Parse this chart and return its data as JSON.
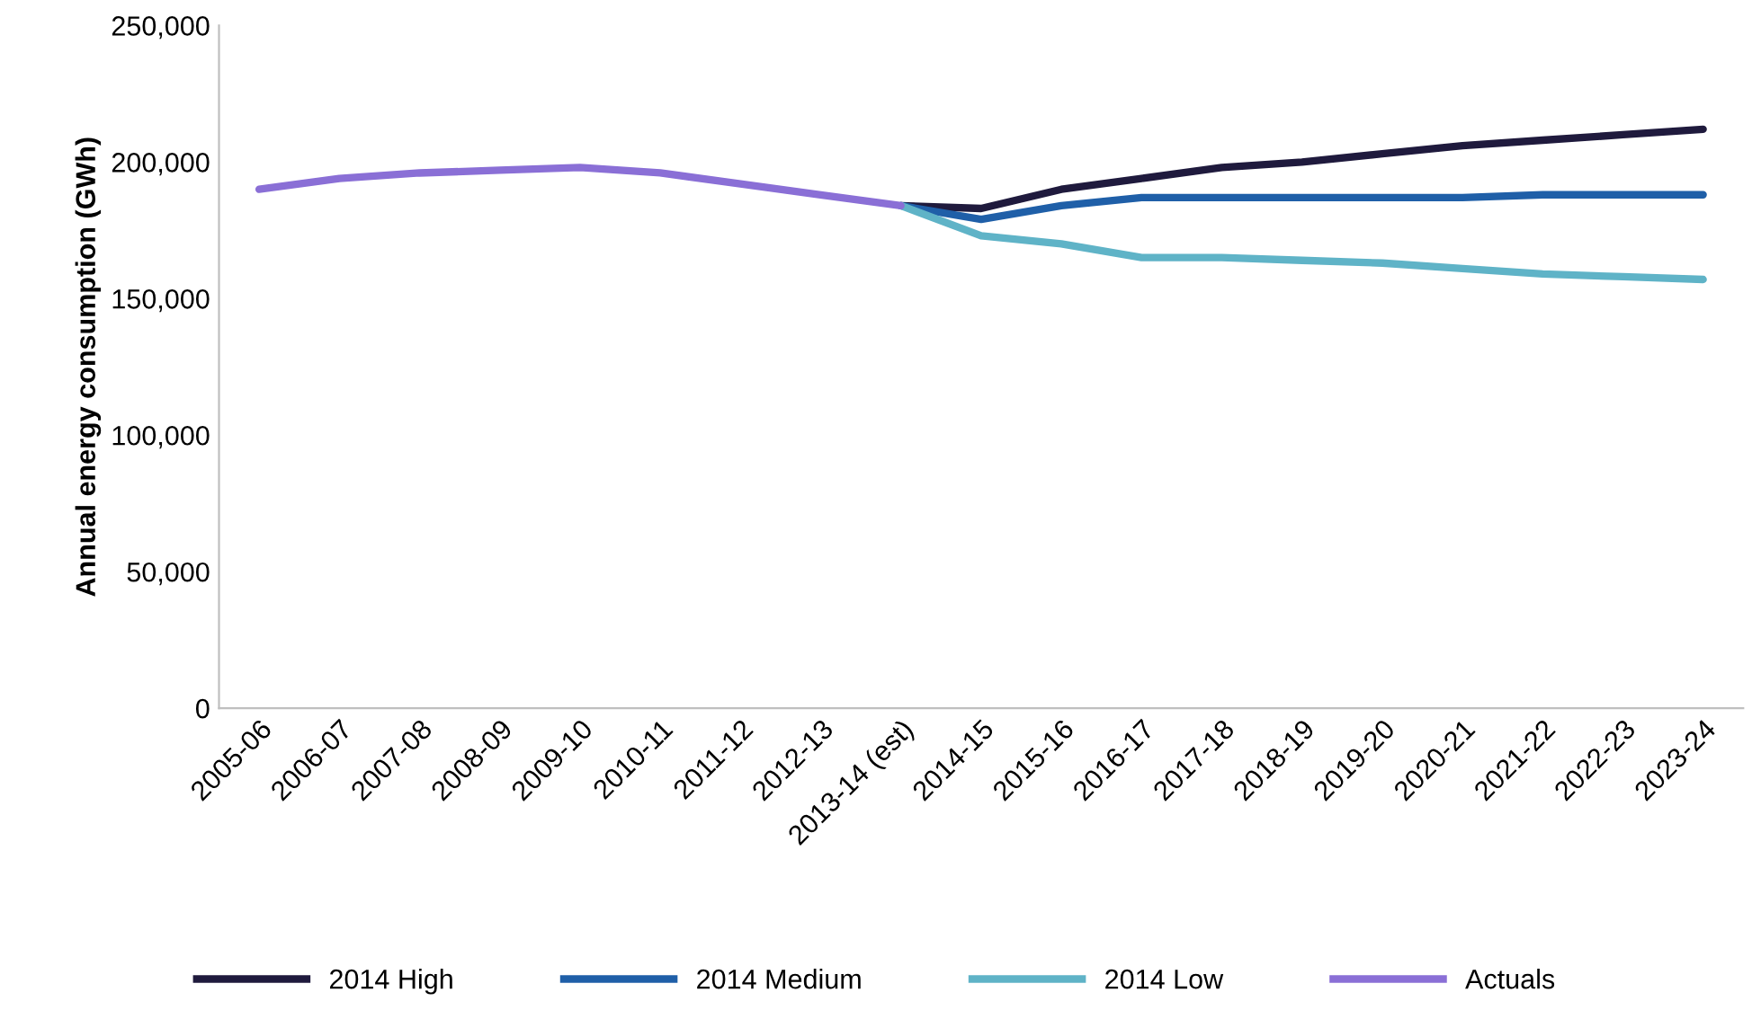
{
  "chart_data": {
    "type": "line",
    "ylabel": "Annual energy consumption (GWh)",
    "categories": [
      "2005-06",
      "2006-07",
      "2007-08",
      "2008-09",
      "2009-10",
      "2010-11",
      "2011-12",
      "2012-13",
      "2013-14 (est)",
      "2014-15",
      "2015-16",
      "2016-17",
      "2017-18",
      "2018-19",
      "2019-20",
      "2020-21",
      "2021-22",
      "2022-23",
      "2023-24"
    ],
    "series": [
      {
        "name": "2014 High",
        "color": "#1f1a3d",
        "values": [
          null,
          null,
          null,
          null,
          null,
          null,
          null,
          null,
          184000,
          183000,
          190000,
          194000,
          198000,
          200000,
          203000,
          206000,
          208000,
          210000,
          212000
        ]
      },
      {
        "name": "2014 Medium",
        "color": "#1f5fa8",
        "values": [
          null,
          null,
          null,
          null,
          null,
          null,
          null,
          null,
          184000,
          179000,
          184000,
          187000,
          187000,
          187000,
          187000,
          187000,
          188000,
          188000,
          188000
        ]
      },
      {
        "name": "2014 Low",
        "color": "#5fb3c7",
        "values": [
          null,
          null,
          null,
          null,
          null,
          null,
          null,
          null,
          184000,
          173000,
          170000,
          165000,
          165000,
          164000,
          163000,
          161000,
          159000,
          158000,
          157000
        ]
      },
      {
        "name": "Actuals",
        "color": "#8a6fd6",
        "values": [
          190000,
          194000,
          196000,
          197000,
          198000,
          196000,
          192000,
          188000,
          184000,
          null,
          null,
          null,
          null,
          null,
          null,
          null,
          null,
          null,
          null
        ]
      }
    ],
    "ylim": [
      0,
      250000
    ],
    "yticks": [
      {
        "value": 0,
        "label": "0"
      },
      {
        "value": 50000,
        "label": "50,000"
      },
      {
        "value": 100000,
        "label": "100,000"
      },
      {
        "value": 150000,
        "label": "150,000"
      },
      {
        "value": 200000,
        "label": "200,000"
      },
      {
        "value": 250000,
        "label": "250,000"
      }
    ],
    "grid": false,
    "legend": "bottom",
    "marker": "none",
    "line_style": "solid"
  }
}
